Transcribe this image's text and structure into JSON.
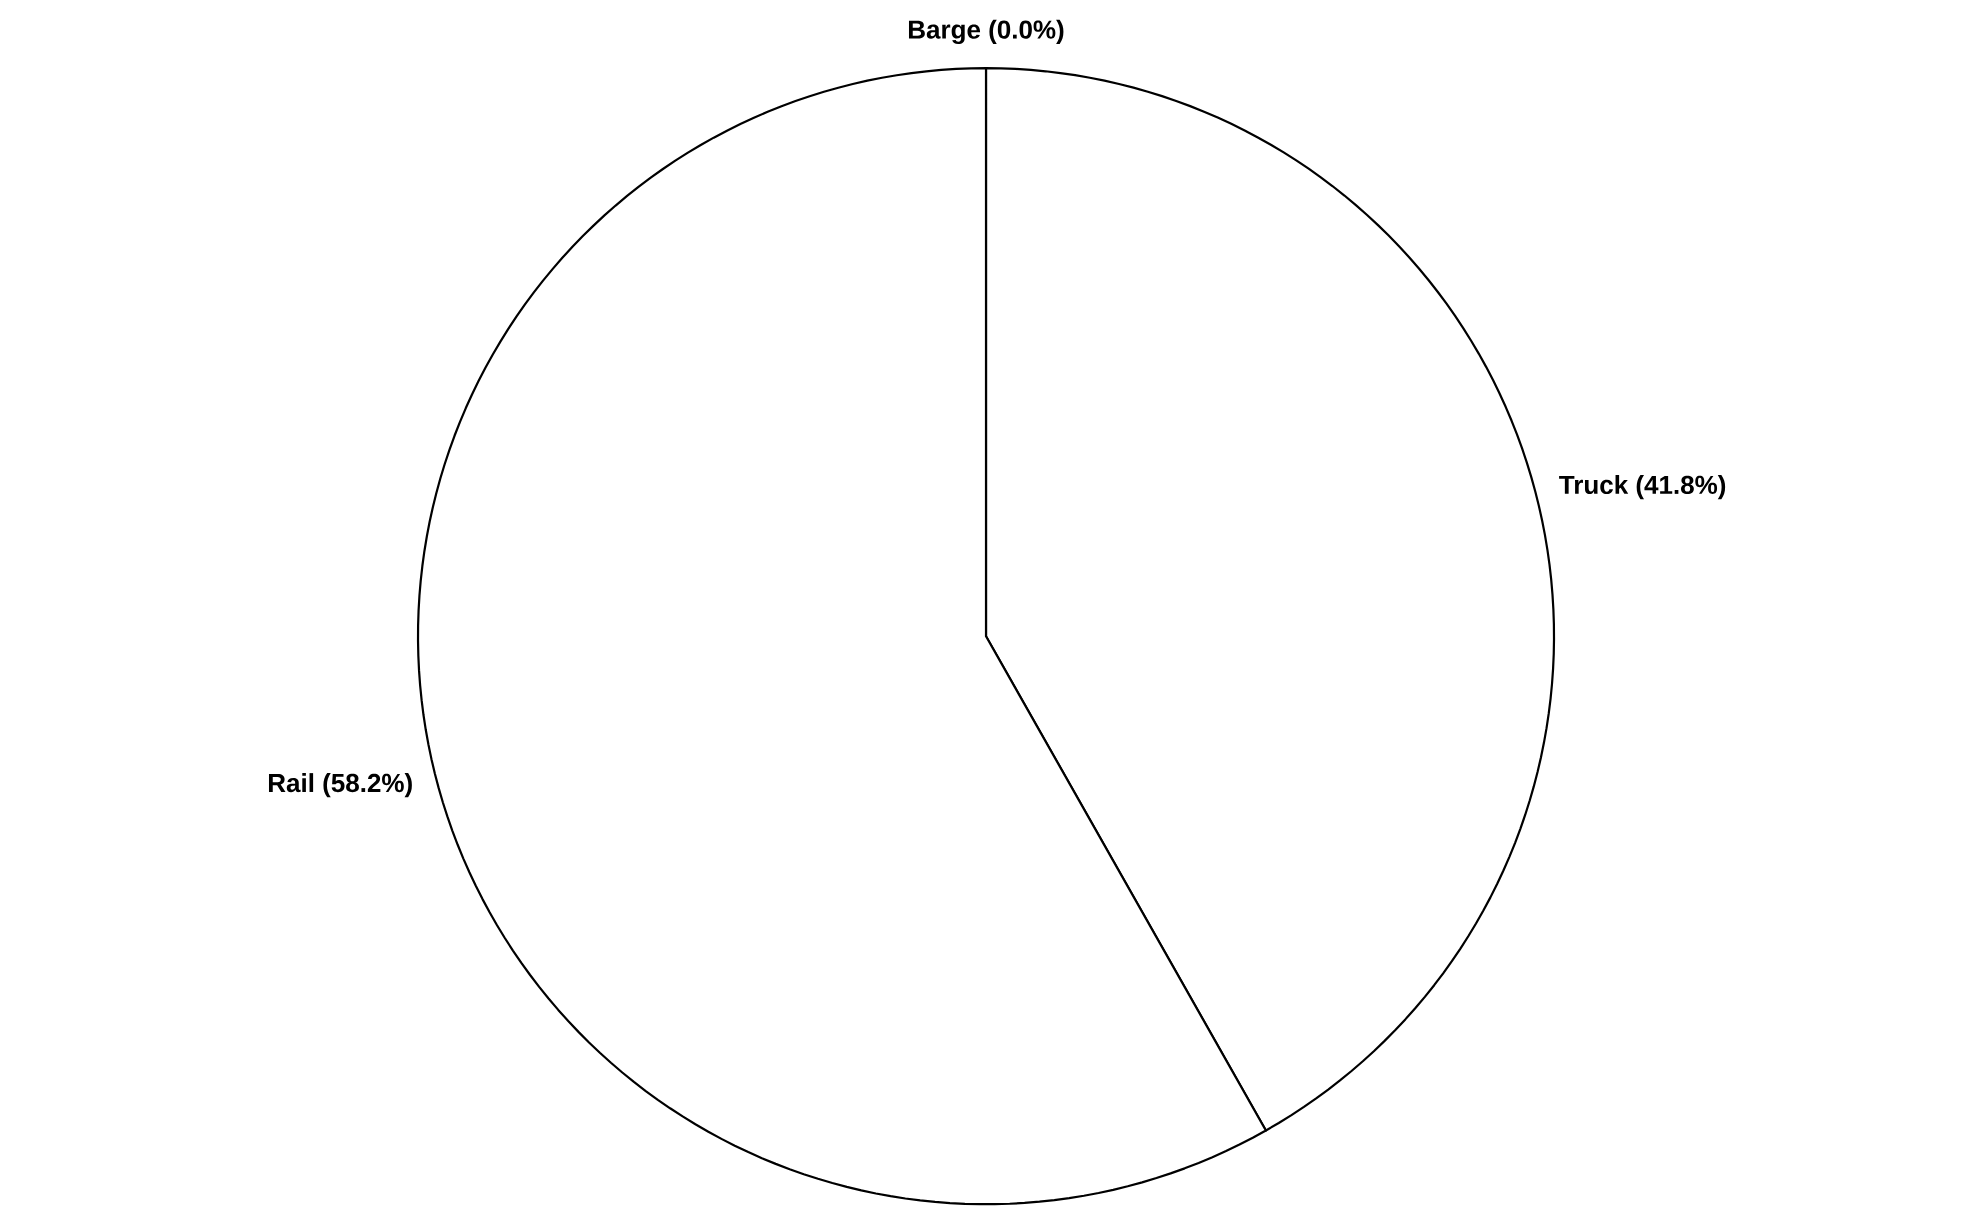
{
  "chart_data": {
    "type": "pie",
    "categories": [
      "Barge (0.0%)",
      "Truck (41.8%)",
      "Rail (58.2%)"
    ],
    "values": [
      0.0,
      41.8,
      58.2
    ],
    "colors": [
      "#ffffff",
      "#ffffff",
      "#ffffff"
    ]
  }
}
